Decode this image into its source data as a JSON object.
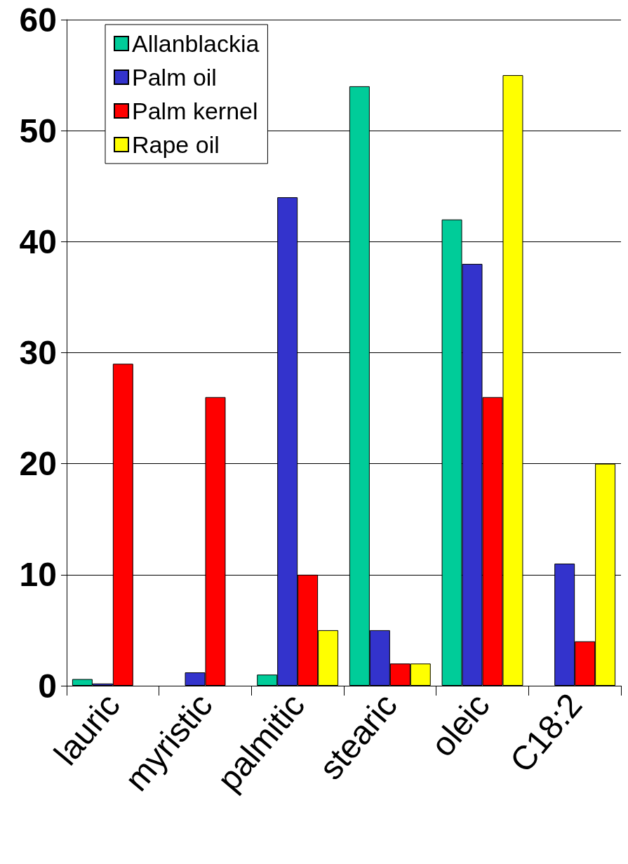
{
  "chart_data": {
    "type": "bar",
    "categories": [
      "lauric",
      "myristic",
      "palmitic",
      "stearic",
      "oleic",
      "C18:2"
    ],
    "series": [
      {
        "name": "Allanblackia",
        "color": "#00cc99",
        "values": [
          0.6,
          0,
          1,
          54,
          42,
          0
        ]
      },
      {
        "name": "Palm oil",
        "color": "#3333cc",
        "values": [
          0.2,
          1.2,
          44,
          5,
          38,
          11
        ]
      },
      {
        "name": "Palm kernel",
        "color": "#ff0000",
        "values": [
          29,
          26,
          10,
          2,
          26,
          4
        ]
      },
      {
        "name": "Rape oil",
        "color": "#ffff00",
        "values": [
          0,
          0,
          5,
          2,
          55,
          20
        ]
      }
    ],
    "ylim": [
      0,
      60
    ],
    "yticks": [
      0,
      10,
      20,
      30,
      40,
      50,
      60
    ],
    "grid": "y",
    "legend": "top left"
  }
}
